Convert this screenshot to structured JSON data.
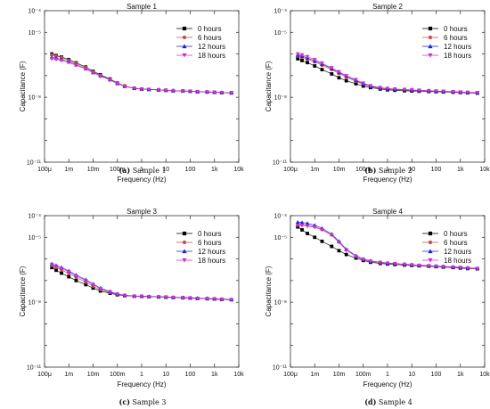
{
  "captions": [
    {
      "label": "(a)",
      "text": "Sample 1"
    },
    {
      "label": "(b)",
      "text": "Sample 2"
    },
    {
      "label": "(c)",
      "text": "Sample 3"
    },
    {
      "label": "(d)",
      "text": "Sample 4"
    }
  ],
  "series_colors": [
    "#000000",
    "#c0504d",
    "#1f1fd6",
    "#cc33cc"
  ],
  "series_markers": [
    "square",
    "circle",
    "triangle-up",
    "triangle-down"
  ],
  "chart_data": [
    {
      "type": "line",
      "title": "Sample 1",
      "xlabel": "Frequency (Hz)",
      "ylabel": "Capacitance (F)",
      "x_scale": "log",
      "y_scale": "log",
      "xlim": [
        0.0001,
        10000
      ],
      "ylim": [
        1e-11,
        0.0001
      ],
      "x_ticks": [
        0.0001,
        0.001,
        0.01,
        0.1,
        1,
        10,
        100,
        1000,
        10000
      ],
      "x_tick_labels": [
        "100μ",
        "1m",
        "10m",
        "100m",
        "1",
        "10",
        "100",
        "1k",
        "10k"
      ],
      "y_ticks": [
        1e-11,
        1e-08,
        1e-05
      ],
      "y_tick_labels": [
        "10⁻¹¹",
        "10⁻⁸",
        "10⁻⁵"
      ],
      "y_top_label": "10⁻⁴",
      "legend_position": "top-right",
      "x": [
        0.0002,
        0.0003,
        0.0005,
        0.001,
        0.002,
        0.005,
        0.01,
        0.02,
        0.05,
        0.1,
        0.2,
        0.5,
        1,
        2,
        5,
        10,
        20,
        50,
        100,
        200,
        500,
        1000,
        2000,
        5000
      ],
      "series": [
        {
          "name": "0 hours",
          "values": [
            1e-06,
            8.5e-07,
            7.2e-07,
            5.5e-07,
            3.9e-07,
            2.5e-07,
            1.6e-07,
            1.1e-07,
            7e-08,
            4.5e-08,
            3.3e-08,
            2.6e-08,
            2.4e-08,
            2.3e-08,
            2.2e-08,
            2.1e-08,
            2e-08,
            1.95e-08,
            1.9e-08,
            1.8e-08,
            1.75e-08,
            1.7e-08,
            1.65e-08,
            1.6e-08
          ]
        },
        {
          "name": "6 hours",
          "values": [
            9e-07,
            8e-07,
            6.8e-07,
            5.2e-07,
            3.7e-07,
            2.4e-07,
            1.55e-07,
            1.05e-07,
            6.8e-08,
            4.4e-08,
            3.3e-08,
            2.6e-08,
            2.4e-08,
            2.3e-08,
            2.2e-08,
            2.1e-08,
            2e-08,
            1.95e-08,
            1.9e-08,
            1.8e-08,
            1.75e-08,
            1.7e-08,
            1.65e-08,
            1.6e-08
          ]
        },
        {
          "name": "12 hours",
          "values": [
            7e-07,
            6.4e-07,
            5.6e-07,
            4.4e-07,
            3.2e-07,
            2.1e-07,
            1.4e-07,
            9.8e-08,
            6.5e-08,
            4.3e-08,
            3.2e-08,
            2.6e-08,
            2.4e-08,
            2.3e-08,
            2.2e-08,
            2.1e-08,
            2e-08,
            1.95e-08,
            1.9e-08,
            1.8e-08,
            1.75e-08,
            1.7e-08,
            1.65e-08,
            1.6e-08
          ]
        },
        {
          "name": "18 hours",
          "values": [
            6e-07,
            5.6e-07,
            5e-07,
            4e-07,
            3e-07,
            2e-07,
            1.35e-07,
            9.5e-08,
            6.3e-08,
            4.2e-08,
            3.2e-08,
            2.6e-08,
            2.4e-08,
            2.3e-08,
            2.2e-08,
            2.1e-08,
            2e-08,
            1.95e-08,
            1.9e-08,
            1.8e-08,
            1.75e-08,
            1.7e-08,
            1.65e-08,
            1.6e-08
          ]
        }
      ]
    },
    {
      "type": "line",
      "title": "Sample 2",
      "xlabel": "Frequency (Hz)",
      "ylabel": "Capacitance (F)",
      "x_scale": "log",
      "y_scale": "log",
      "xlim": [
        0.0001,
        10000
      ],
      "ylim": [
        1e-11,
        0.0001
      ],
      "x_ticks": [
        0.0001,
        0.001,
        0.01,
        0.1,
        1,
        10,
        100,
        1000,
        10000
      ],
      "x_tick_labels": [
        "100μ",
        "1m",
        "10m",
        "100m",
        "1",
        "10",
        "100",
        "1k",
        "10k"
      ],
      "y_ticks": [
        1e-11,
        1e-08,
        1e-05
      ],
      "y_tick_labels": [
        "10⁻¹¹",
        "10⁻⁸",
        "10⁻⁵"
      ],
      "y_top_label": "10⁻⁴",
      "legend_position": "top-right",
      "x": [
        0.0002,
        0.0003,
        0.0005,
        0.001,
        0.002,
        0.005,
        0.01,
        0.02,
        0.05,
        0.1,
        0.2,
        0.5,
        1,
        2,
        5,
        10,
        20,
        50,
        100,
        200,
        500,
        1000,
        2000,
        5000
      ],
      "series": [
        {
          "name": "0 hours",
          "values": [
            6e-07,
            5e-07,
            4e-07,
            2.8e-07,
            1.9e-07,
            1.2e-07,
            8e-08,
            5.8e-08,
            4.2e-08,
            3.3e-08,
            2.8e-08,
            2.4e-08,
            2.2e-08,
            2.1e-08,
            2e-08,
            1.95e-08,
            1.9e-08,
            1.85e-08,
            1.8e-08,
            1.75e-08,
            1.7e-08,
            1.65e-08,
            1.6e-08,
            1.55e-08
          ]
        },
        {
          "name": "6 hours",
          "values": [
            8e-07,
            7e-07,
            5.8e-07,
            4.3e-07,
            3e-07,
            1.9e-07,
            1.25e-07,
            8.5e-08,
            5.5e-08,
            4e-08,
            3.1e-08,
            2.6e-08,
            2.4e-08,
            2.3e-08,
            2.2e-08,
            2.1e-08,
            2e-08,
            1.95e-08,
            1.9e-08,
            1.8e-08,
            1.75e-08,
            1.7e-08,
            1.65e-08,
            1.6e-08
          ]
        },
        {
          "name": "12 hours",
          "values": [
            9e-07,
            8e-07,
            6.5e-07,
            4.8e-07,
            3.4e-07,
            2.1e-07,
            1.4e-07,
            9.5e-08,
            6e-08,
            4.2e-08,
            3.2e-08,
            2.7e-08,
            2.5e-08,
            2.35e-08,
            2.25e-08,
            2.15e-08,
            2.05e-08,
            2e-08,
            1.9e-08,
            1.85e-08,
            1.8e-08,
            1.7e-08,
            1.65e-08,
            1.6e-08
          ]
        },
        {
          "name": "18 hours",
          "values": [
            1e-06,
            9e-07,
            7.5e-07,
            5.5e-07,
            3.8e-07,
            2.3e-07,
            1.5e-07,
            1e-07,
            6.5e-08,
            4.5e-08,
            3.4e-08,
            2.8e-08,
            2.55e-08,
            2.4e-08,
            2.3e-08,
            2.2e-08,
            2.1e-08,
            2e-08,
            1.95e-08,
            1.9e-08,
            1.8e-08,
            1.75e-08,
            1.7e-08,
            1.65e-08
          ]
        }
      ]
    },
    {
      "type": "line",
      "title": "Sample 3",
      "xlabel": "Frequency (Hz)",
      "ylabel": "Capacitance (F)",
      "x_scale": "log",
      "y_scale": "log",
      "xlim": [
        0.0001,
        10000
      ],
      "ylim": [
        1e-11,
        0.0001
      ],
      "x_ticks": [
        0.0001,
        0.001,
        0.01,
        0.1,
        1,
        10,
        100,
        1000,
        10000
      ],
      "x_tick_labels": [
        "100μ",
        "1m",
        "10m",
        "100m",
        "1",
        "10",
        "100",
        "1k",
        "10k"
      ],
      "y_ticks": [
        1e-11,
        1e-08,
        1e-05
      ],
      "y_tick_labels": [
        "10⁻¹¹",
        "10⁻⁸",
        "10⁻⁵"
      ],
      "y_top_label": "10⁻⁴",
      "legend_position": "top-right",
      "x": [
        0.0002,
        0.0003,
        0.0005,
        0.001,
        0.002,
        0.005,
        0.01,
        0.02,
        0.05,
        0.1,
        0.2,
        0.5,
        1,
        2,
        5,
        10,
        20,
        50,
        100,
        200,
        500,
        1000,
        2000,
        5000
      ],
      "series": [
        {
          "name": "0 hours",
          "values": [
            4e-07,
            3e-07,
            2.2e-07,
            1.5e-07,
            1e-07,
            6.5e-08,
            4.5e-08,
            3.3e-08,
            2.6e-08,
            2.2e-08,
            2e-08,
            1.9e-08,
            1.85e-08,
            1.8e-08,
            1.75e-08,
            1.7e-08,
            1.65e-08,
            1.6e-08,
            1.55e-08,
            1.5e-08,
            1.45e-08,
            1.4e-08,
            1.35e-08,
            1.3e-08
          ]
        },
        {
          "name": "6 hours",
          "values": [
            5e-07,
            4e-07,
            3.1e-07,
            2.1e-07,
            1.4e-07,
            8.5e-08,
            5.5e-08,
            3.8e-08,
            2.8e-08,
            2.3e-08,
            2.05e-08,
            1.9e-08,
            1.85e-08,
            1.8e-08,
            1.75e-08,
            1.7e-08,
            1.65e-08,
            1.6e-08,
            1.55e-08,
            1.5e-08,
            1.45e-08,
            1.4e-08,
            1.35e-08,
            1.3e-08
          ]
        },
        {
          "name": "12 hours",
          "values": [
            6e-07,
            5e-07,
            4e-07,
            2.8e-07,
            1.8e-07,
            1.1e-07,
            7e-08,
            4.5e-08,
            3.1e-08,
            2.4e-08,
            2.1e-08,
            1.95e-08,
            1.9e-08,
            1.85e-08,
            1.8e-08,
            1.75e-08,
            1.7e-08,
            1.65e-08,
            1.6e-08,
            1.55e-08,
            1.5e-08,
            1.45e-08,
            1.4e-08,
            1.35e-08
          ]
        },
        {
          "name": "18 hours",
          "values": [
            5.5e-07,
            4.5e-07,
            3.6e-07,
            2.5e-07,
            1.6e-07,
            1e-07,
            6.5e-08,
            4.2e-08,
            3e-08,
            2.35e-08,
            2.05e-08,
            1.9e-08,
            1.85e-08,
            1.8e-08,
            1.75e-08,
            1.7e-08,
            1.65e-08,
            1.6e-08,
            1.55e-08,
            1.5e-08,
            1.45e-08,
            1.4e-08,
            1.35e-08,
            1.3e-08
          ]
        }
      ]
    },
    {
      "type": "line",
      "title": "Sample 4",
      "xlabel": "Frequency (Hz)",
      "ylabel": "Capacitance (F)",
      "x_scale": "log",
      "y_scale": "log",
      "xlim": [
        0.0001,
        10000
      ],
      "ylim": [
        1e-11,
        0.0001
      ],
      "x_ticks": [
        0.0001,
        0.001,
        0.01,
        0.1,
        1,
        10,
        100,
        1000,
        10000
      ],
      "x_tick_labels": [
        "100μ",
        "1m",
        "10m",
        "100m",
        "1",
        "10",
        "100",
        "1k",
        "10k"
      ],
      "y_ticks": [
        1e-11,
        1e-08,
        1e-05
      ],
      "y_tick_labels": [
        "10⁻¹¹",
        "10⁻⁸",
        "10⁻⁵"
      ],
      "y_top_label": "10⁻⁴",
      "legend_position": "top-right",
      "x": [
        0.0002,
        0.0003,
        0.0005,
        0.001,
        0.002,
        0.005,
        0.01,
        0.02,
        0.05,
        0.1,
        0.2,
        0.5,
        1,
        2,
        5,
        10,
        20,
        50,
        100,
        200,
        500,
        1000,
        2000,
        5000
      ],
      "series": [
        {
          "name": "0 hours",
          "values": [
            3e-05,
            2.2e-05,
            1.5e-05,
            1e-05,
            6.5e-06,
            3.8e-06,
            2.4e-06,
            1.6e-06,
            1.1e-06,
            8.5e-07,
            7e-07,
            6.2e-07,
            5.8e-07,
            5.5e-07,
            5.2e-07,
            5e-07,
            4.8e-07,
            4.6e-07,
            4.4e-07,
            4.2e-07,
            4e-07,
            3.8e-07,
            3.6e-07,
            3.5e-07
          ]
        },
        {
          "name": "6 hours",
          "values": [
            4e-05,
            3.9e-05,
            3.6e-05,
            3.1e-05,
            2.3e-05,
            1.3e-05,
            6e-06,
            2.6e-06,
            1.3e-06,
            9.5e-07,
            7.8e-07,
            6.8e-07,
            6.3e-07,
            6e-07,
            5.6e-07,
            5.3e-07,
            5e-07,
            4.8e-07,
            4.6e-07,
            4.4e-07,
            4.2e-07,
            4e-07,
            3.8e-07,
            3.6e-07
          ]
        },
        {
          "name": "12 hours",
          "values": [
            5e-05,
            4.8e-05,
            4.4e-05,
            3.6e-05,
            2.6e-05,
            1.4e-05,
            6.5e-06,
            2.8e-06,
            1.4e-06,
            1e-06,
            8e-07,
            7e-07,
            6.5e-07,
            6.1e-07,
            5.7e-07,
            5.4e-07,
            5.1e-07,
            4.9e-07,
            4.7e-07,
            4.5e-07,
            4.3e-07,
            4.1e-07,
            3.9e-07,
            3.7e-07
          ]
        },
        {
          "name": "18 hours",
          "values": [
            3.5e-05,
            3.5e-05,
            3.3e-05,
            2.9e-05,
            2.2e-05,
            1.25e-05,
            5.8e-06,
            2.6e-06,
            1.3e-06,
            9.5e-07,
            7.8e-07,
            6.8e-07,
            6.3e-07,
            6e-07,
            5.6e-07,
            5.3e-07,
            5e-07,
            4.8e-07,
            4.6e-07,
            4.4e-07,
            4.2e-07,
            4e-07,
            3.8e-07,
            3.6e-07
          ]
        }
      ]
    }
  ]
}
